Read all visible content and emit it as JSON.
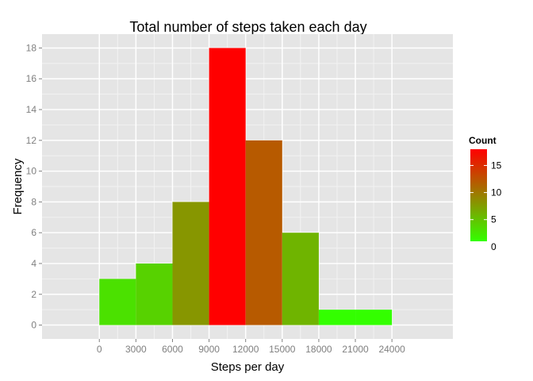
{
  "chart_data": {
    "type": "bar",
    "title": "Total number of steps taken each day",
    "xlabel": "Steps per day",
    "ylabel": "Frequency",
    "bins": [
      {
        "x_start": 0,
        "x_end": 3000,
        "count": 3
      },
      {
        "x_start": 3000,
        "x_end": 6000,
        "count": 4
      },
      {
        "x_start": 6000,
        "x_end": 9000,
        "count": 8
      },
      {
        "x_start": 9000,
        "x_end": 12000,
        "count": 18
      },
      {
        "x_start": 12000,
        "x_end": 15000,
        "count": 12
      },
      {
        "x_start": 15000,
        "x_end": 18000,
        "count": 6
      },
      {
        "x_start": 18000,
        "x_end": 21000,
        "count": 1
      },
      {
        "x_start": 21000,
        "x_end": 24000,
        "count": 1
      }
    ],
    "x_ticks": [
      0,
      3000,
      6000,
      9000,
      12000,
      15000,
      18000,
      21000,
      24000
    ],
    "y_ticks": [
      0,
      2,
      4,
      6,
      8,
      10,
      12,
      14,
      16,
      18
    ],
    "xlim": [
      -4700,
      29000
    ],
    "ylim": [
      -0.9,
      18.9
    ],
    "grid": true,
    "legend": {
      "title": "Count",
      "position": "right",
      "ticks": [
        0,
        5,
        10,
        15
      ],
      "range": [
        1,
        18
      ],
      "low_color": "#33FF00",
      "high_color": "#FF0000"
    },
    "colors": {
      "panel_background": "#E5E5E5",
      "major_grid": "#FFFFFF",
      "minor_grid": "#F2F2F2"
    }
  }
}
